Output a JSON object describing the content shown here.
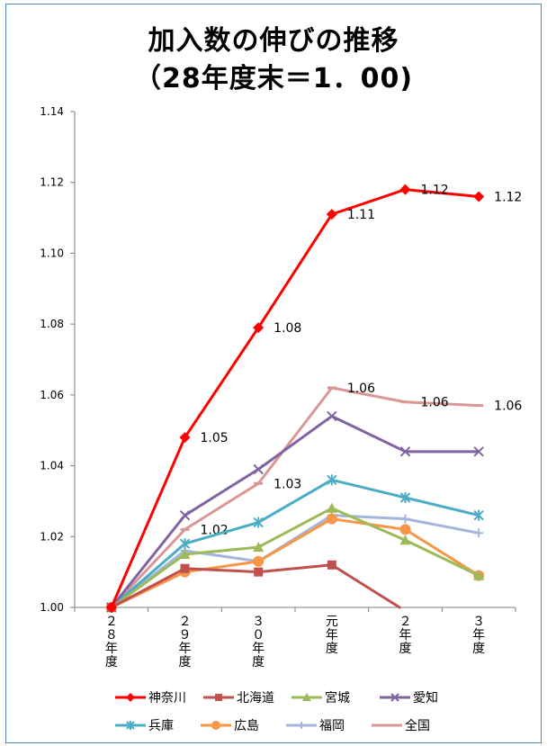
{
  "chart_data": {
    "type": "line",
    "title_line1": "加入数の伸びの推移",
    "title_line2": "（28年度末＝1．00)",
    "categories": [
      "２８年度",
      "２９年度",
      "３０年度",
      "元年度",
      "２年度",
      "３年度"
    ],
    "ylim": [
      1.0,
      1.14
    ],
    "yticks": [
      "1.00",
      "1.02",
      "1.04",
      "1.06",
      "1.08",
      "1.10",
      "1.12",
      "1.14"
    ],
    "grid": false,
    "legend_position": "bottom",
    "series": [
      {
        "name": "神奈川",
        "color": "#ff0000",
        "marker": "diamond",
        "values": [
          1.0,
          1.048,
          1.079,
          1.111,
          1.118,
          1.116
        ],
        "labels": [
          "",
          "1.05",
          "1.08",
          "1.11",
          "1.12",
          "1.12"
        ]
      },
      {
        "name": "北海道",
        "color": "#c0504d",
        "marker": "square",
        "values": [
          1.0,
          1.011,
          1.01,
          1.012,
          0.999,
          null
        ],
        "labels": []
      },
      {
        "name": "宮城",
        "color": "#9bbb59",
        "marker": "triangle",
        "values": [
          1.0,
          1.015,
          1.017,
          1.028,
          1.019,
          1.009
        ],
        "labels": []
      },
      {
        "name": "愛知",
        "color": "#8064a2",
        "marker": "x",
        "values": [
          1.0,
          1.026,
          1.039,
          1.054,
          1.044,
          1.044
        ],
        "labels": []
      },
      {
        "name": "兵庫",
        "color": "#4bacc6",
        "marker": "star",
        "values": [
          1.0,
          1.018,
          1.024,
          1.036,
          1.031,
          1.026
        ],
        "labels": []
      },
      {
        "name": "広島",
        "color": "#f79646",
        "marker": "circle",
        "values": [
          1.0,
          1.01,
          1.013,
          1.025,
          1.022,
          1.009
        ],
        "labels": []
      },
      {
        "name": "福岡",
        "color": "#a5b4dc",
        "marker": "plus",
        "values": [
          1.0,
          1.016,
          1.013,
          1.026,
          1.025,
          1.021
        ],
        "labels": []
      },
      {
        "name": "全国",
        "color": "#d99694",
        "marker": "dash",
        "values": [
          1.0,
          1.022,
          1.035,
          1.062,
          1.058,
          1.057
        ],
        "labels": [
          "",
          "1.02",
          "1.03",
          "1.06",
          "1.06",
          "1.06"
        ]
      }
    ]
  }
}
